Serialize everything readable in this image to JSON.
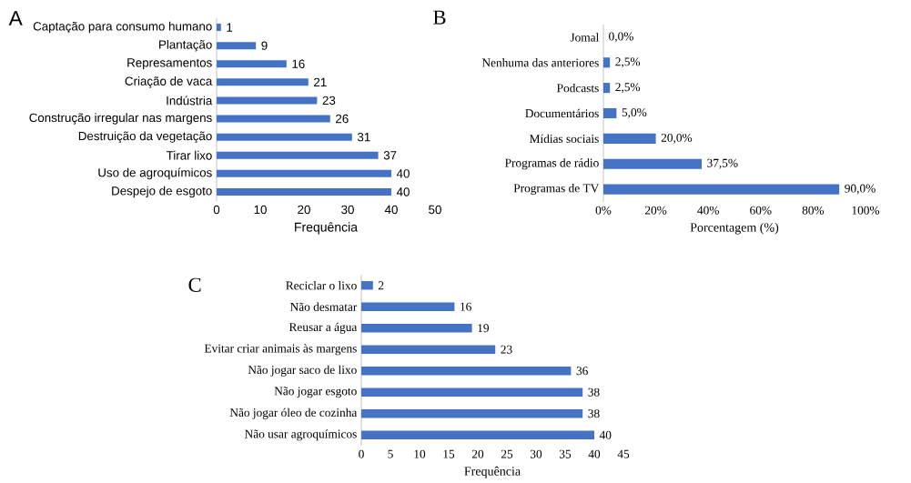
{
  "chart_data": [
    {
      "type": "bar",
      "orientation": "horizontal",
      "title": "A",
      "xlabel": "Frequência",
      "categories": [
        "Captação para consumo humano",
        "Plantação",
        "Represamentos",
        "Criação de vaca",
        "Indústria",
        "Construção irregular nas margens",
        "Destruição da vegetação",
        "Tirar lixo",
        "Uso de agroquímicos",
        "Despejo de esgoto"
      ],
      "values": [
        1,
        9,
        16,
        21,
        23,
        26,
        31,
        37,
        40,
        40
      ],
      "color": "#4472c4",
      "xlim": [
        0,
        50
      ],
      "xticks": [
        0,
        10,
        20,
        30,
        40,
        50
      ],
      "data_labels": true
    },
    {
      "type": "bar",
      "orientation": "horizontal",
      "title": "B",
      "xlabel": "Porcentagem (%)",
      "categories": [
        "Jomal",
        "Nenhuma das anteriores",
        "Podcasts",
        "Documentários",
        "Mídias sociais",
        "Programas de rádio",
        "Programas de TV"
      ],
      "values": [
        0.0,
        2.5,
        2.5,
        5.0,
        20.0,
        37.5,
        90.0
      ],
      "value_labels": [
        "0,0%",
        "2,5%",
        "2,5%",
        "5,0%",
        "20,0%",
        "37,5%",
        "90,0%"
      ],
      "color": "#4472c4",
      "xlim": [
        0,
        100
      ],
      "xticks": [
        {
          "value": 0,
          "label": "0%"
        },
        {
          "value": 20,
          "label": "20%"
        },
        {
          "value": 40,
          "label": "40%"
        },
        {
          "value": 60,
          "label": "60%"
        },
        {
          "value": 80,
          "label": "80%"
        },
        {
          "value": 100,
          "label": "100%"
        }
      ]
    },
    {
      "type": "bar",
      "orientation": "horizontal",
      "title": "C",
      "xlabel": "Frequência",
      "categories": [
        "Reciclar o lixo",
        "Não desmatar",
        "Reusar a água",
        "Evitar criar animais às margens",
        "Não jogar saco de lixo",
        "Não jogar esgoto",
        "Não jogar óleo de cozinha",
        "Não usar agroquímicos"
      ],
      "values": [
        2,
        16,
        19,
        23,
        36,
        38,
        38,
        40
      ],
      "color": "#4472c4",
      "xlim": [
        0,
        45
      ],
      "xticks": [
        0,
        5,
        10,
        15,
        20,
        25,
        30,
        35,
        40,
        45
      ],
      "data_labels": true
    }
  ]
}
